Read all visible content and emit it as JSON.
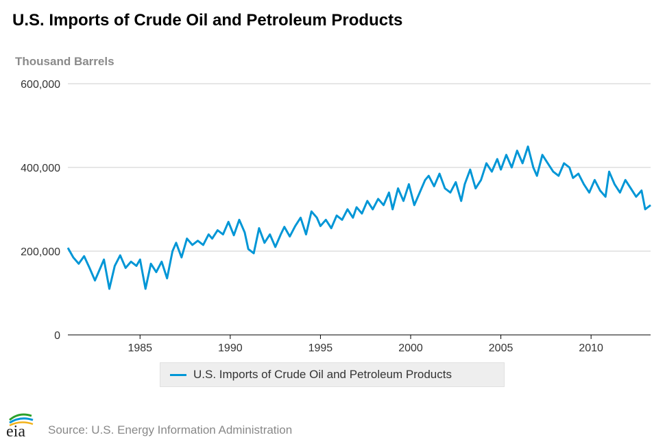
{
  "chart_data": {
    "type": "line",
    "title": "U.S. Imports of Crude Oil and Petroleum Products",
    "ylabel": "Thousand Barrels",
    "ylim": [
      0,
      600000
    ],
    "yticks": [
      0,
      200000,
      400000,
      600000
    ],
    "ytick_labels": [
      "0",
      "200,000",
      "400,000",
      "600,000"
    ],
    "xlim": [
      1981,
      2013.3
    ],
    "xticks": [
      1985,
      1990,
      1995,
      2000,
      2005,
      2010
    ],
    "xtick_labels": [
      "1985",
      "1990",
      "1995",
      "2000",
      "2005",
      "2010"
    ],
    "grid": "horizontal",
    "legend_position": "bottom-center",
    "color": "#0096d6",
    "series": [
      {
        "name": "U.S. Imports of Crude Oil and Petroleum Products",
        "x": [
          1981.0,
          1981.3,
          1981.6,
          1981.9,
          1982.2,
          1982.5,
          1982.8,
          1983.0,
          1983.3,
          1983.6,
          1983.9,
          1984.2,
          1984.5,
          1984.8,
          1985.0,
          1985.3,
          1985.6,
          1985.9,
          1986.2,
          1986.5,
          1986.8,
          1987.0,
          1987.3,
          1987.6,
          1987.9,
          1988.2,
          1988.5,
          1988.8,
          1989.0,
          1989.3,
          1989.6,
          1989.9,
          1990.2,
          1990.5,
          1990.8,
          1991.0,
          1991.3,
          1991.6,
          1991.9,
          1992.2,
          1992.5,
          1992.8,
          1993.0,
          1993.3,
          1993.6,
          1993.9,
          1994.2,
          1994.5,
          1994.8,
          1995.0,
          1995.3,
          1995.6,
          1995.9,
          1996.2,
          1996.5,
          1996.8,
          1997.0,
          1997.3,
          1997.6,
          1997.9,
          1998.2,
          1998.5,
          1998.8,
          1999.0,
          1999.3,
          1999.6,
          1999.9,
          2000.2,
          2000.5,
          2000.8,
          2001.0,
          2001.3,
          2001.6,
          2001.9,
          2002.2,
          2002.5,
          2002.8,
          2003.0,
          2003.3,
          2003.6,
          2003.9,
          2004.2,
          2004.5,
          2004.8,
          2005.0,
          2005.3,
          2005.6,
          2005.9,
          2006.2,
          2006.5,
          2006.8,
          2007.0,
          2007.3,
          2007.6,
          2007.9,
          2008.2,
          2008.5,
          2008.8,
          2009.0,
          2009.3,
          2009.6,
          2009.9,
          2010.2,
          2010.5,
          2010.8,
          2011.0,
          2011.3,
          2011.6,
          2011.9,
          2012.2,
          2012.5,
          2012.8,
          2013.0,
          2013.3
        ],
        "values": [
          208000,
          185000,
          170000,
          188000,
          160000,
          130000,
          160000,
          180000,
          110000,
          165000,
          190000,
          160000,
          175000,
          165000,
          180000,
          110000,
          170000,
          150000,
          175000,
          135000,
          200000,
          220000,
          185000,
          230000,
          215000,
          225000,
          215000,
          240000,
          230000,
          250000,
          240000,
          270000,
          238000,
          275000,
          245000,
          205000,
          195000,
          255000,
          220000,
          240000,
          210000,
          240000,
          258000,
          235000,
          260000,
          280000,
          240000,
          295000,
          280000,
          260000,
          275000,
          255000,
          285000,
          275000,
          300000,
          280000,
          305000,
          290000,
          320000,
          300000,
          325000,
          310000,
          340000,
          300000,
          350000,
          320000,
          360000,
          310000,
          340000,
          370000,
          380000,
          355000,
          385000,
          350000,
          340000,
          365000,
          320000,
          360000,
          395000,
          350000,
          370000,
          410000,
          390000,
          420000,
          395000,
          430000,
          400000,
          440000,
          410000,
          450000,
          400000,
          380000,
          430000,
          410000,
          390000,
          380000,
          410000,
          400000,
          375000,
          385000,
          360000,
          340000,
          370000,
          345000,
          330000,
          390000,
          360000,
          340000,
          370000,
          350000,
          330000,
          345000,
          300000,
          310000
        ]
      }
    ]
  },
  "legend": {
    "label": "U.S. Imports of Crude Oil and Petroleum Products"
  },
  "source": "Source: U.S. Energy Information Administration",
  "logo_text": "eia"
}
